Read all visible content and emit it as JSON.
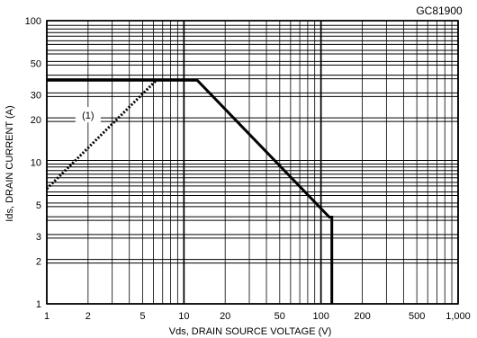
{
  "chart_data": {
    "type": "line",
    "code": "GC81900",
    "xlabel": "Vds, DRAIN SOURCE VOLTAGE (V)",
    "ylabel": "Ids, DRAIN CURRENT (A)",
    "x_scale": "log",
    "y_scale": "log",
    "xlim": [
      1,
      1000
    ],
    "ylim": [
      1,
      100
    ],
    "grid": true,
    "x_ticks": [
      {
        "value": 1,
        "label": "1"
      },
      {
        "value": 2,
        "label": "2"
      },
      {
        "value": 5,
        "label": "5"
      },
      {
        "value": 10,
        "label": "10"
      },
      {
        "value": 20,
        "label": "20"
      },
      {
        "value": 50,
        "label": "50"
      },
      {
        "value": 100,
        "label": "100"
      },
      {
        "value": 200,
        "label": "200"
      },
      {
        "value": 500,
        "label": "500"
      },
      {
        "value": 1000,
        "label": "1,000"
      }
    ],
    "y_ticks": [
      {
        "value": 1,
        "label": "1"
      },
      {
        "value": 2,
        "label": "2"
      },
      {
        "value": 3,
        "label": "3"
      },
      {
        "value": 5,
        "label": "5"
      },
      {
        "value": 10,
        "label": "10"
      },
      {
        "value": 20,
        "label": "20"
      },
      {
        "value": 30,
        "label": "30"
      },
      {
        "value": 50,
        "label": "50"
      },
      {
        "value": 100,
        "label": "100"
      }
    ],
    "series": [
      {
        "style": "solid",
        "color": "#000000",
        "points": [
          [
            1,
            38
          ],
          [
            12.5,
            38
          ],
          [
            115,
            4.1
          ],
          [
            120,
            4.1
          ],
          [
            120,
            1
          ]
        ]
      },
      {
        "style": "dotted",
        "color": "#000000",
        "points": [
          [
            1,
            6.5
          ],
          [
            6.3,
            38
          ]
        ]
      }
    ],
    "annotations": [
      {
        "text": "(1)",
        "x": 2,
        "y": 21.5
      }
    ]
  }
}
